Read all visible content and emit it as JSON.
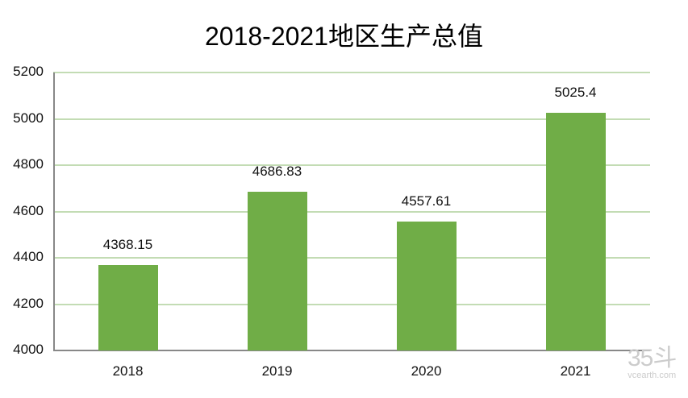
{
  "chart_data": {
    "type": "bar",
    "title": "2018-2021地区生产总值",
    "categories": [
      "2018",
      "2019",
      "2020",
      "2021"
    ],
    "values": [
      4368.15,
      4686.83,
      4557.61,
      5025.4
    ],
    "value_labels": [
      "4368.15",
      "4686.83",
      "4557.61",
      "5025.4"
    ],
    "xlabel": "",
    "ylabel": "",
    "ylim": [
      4000,
      5200
    ],
    "yticks": [
      "5200",
      "5000",
      "4800",
      "4600",
      "4400",
      "4200",
      "4000"
    ],
    "grid": true,
    "legend": "none",
    "bar_color": "#70ad47",
    "grid_color": "#c3dcb4"
  },
  "watermark": {
    "mark": "35斗",
    "site": "vcearth.com"
  }
}
